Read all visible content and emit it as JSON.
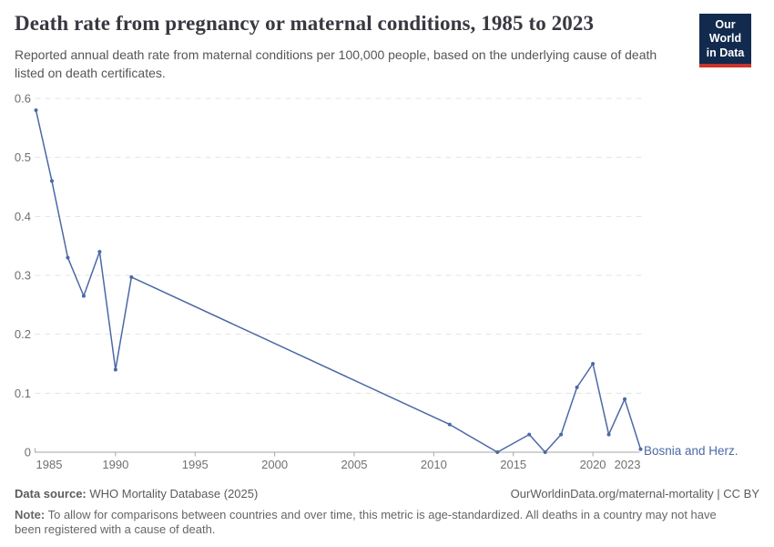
{
  "header": {
    "title": "Death rate from pregnancy or maternal conditions, 1985 to 2023",
    "subtitle": "Reported annual death rate from maternal conditions per 100,000 people, based on the underlying cause of death listed on death certificates.",
    "logo": {
      "line1": "Our World",
      "line2": "in Data",
      "bg_color": "#122A4E",
      "accent_color": "#C9342C"
    }
  },
  "chart_data": {
    "type": "line",
    "title": "Death rate from pregnancy or maternal conditions, 1985 to 2023",
    "xlabel": "",
    "ylabel": "",
    "xlim": [
      1985,
      2023
    ],
    "ylim": [
      0,
      0.6
    ],
    "grid": "horizontal-dashed",
    "legend_position": "end-of-line-label",
    "series": [
      {
        "name": "Bosnia and Herz.",
        "color": "#4B69A5",
        "points": [
          [
            1985,
            0.58
          ],
          [
            1986,
            0.46
          ],
          [
            1987,
            0.33
          ],
          [
            1988,
            0.265
          ],
          [
            1989,
            0.34
          ],
          [
            1990,
            0.14
          ],
          [
            1991,
            0.297
          ],
          [
            2011,
            0.047
          ],
          [
            2014,
            0
          ],
          [
            2016,
            0.03
          ],
          [
            2017,
            0
          ],
          [
            2018,
            0.03
          ],
          [
            2019,
            0.11
          ],
          [
            2020,
            0.15
          ],
          [
            2021,
            0.03
          ],
          [
            2022,
            0.09
          ],
          [
            2023,
            0.005
          ]
        ]
      }
    ],
    "y_ticks": [
      {
        "value": 0,
        "label": "0"
      },
      {
        "value": 0.1,
        "label": "0.1"
      },
      {
        "value": 0.2,
        "label": "0.2"
      },
      {
        "value": 0.3,
        "label": "0.3"
      },
      {
        "value": 0.4,
        "label": "0.4"
      },
      {
        "value": 0.5,
        "label": "0.5"
      },
      {
        "value": 0.6,
        "label": "0.6"
      }
    ],
    "x_ticks": [
      {
        "year": 1985,
        "label": "1985",
        "align": "start",
        "tick_mark": false
      },
      {
        "year": 1990,
        "label": "1990",
        "align": "middle",
        "tick_mark": true
      },
      {
        "year": 1995,
        "label": "1995",
        "align": "middle",
        "tick_mark": true
      },
      {
        "year": 2000,
        "label": "2000",
        "align": "middle",
        "tick_mark": true
      },
      {
        "year": 2005,
        "label": "2005",
        "align": "middle",
        "tick_mark": true
      },
      {
        "year": 2010,
        "label": "2010",
        "align": "middle",
        "tick_mark": true
      },
      {
        "year": 2015,
        "label": "2015",
        "align": "middle",
        "tick_mark": true
      },
      {
        "year": 2020,
        "label": "2020",
        "align": "middle",
        "tick_mark": true
      },
      {
        "year": 2023,
        "label": "2023",
        "align": "end",
        "tick_mark": false
      }
    ]
  },
  "footer": {
    "data_source_label": "Data source:",
    "data_source_text": " WHO Mortality Database (2025)",
    "credit": "OurWorldinData.org/maternal-mortality | CC BY",
    "note_label": "Note:",
    "note_text": " To allow for comparisons between countries and over time, this metric is age-standardized. All deaths in a country may not have been registered with a cause of death."
  }
}
